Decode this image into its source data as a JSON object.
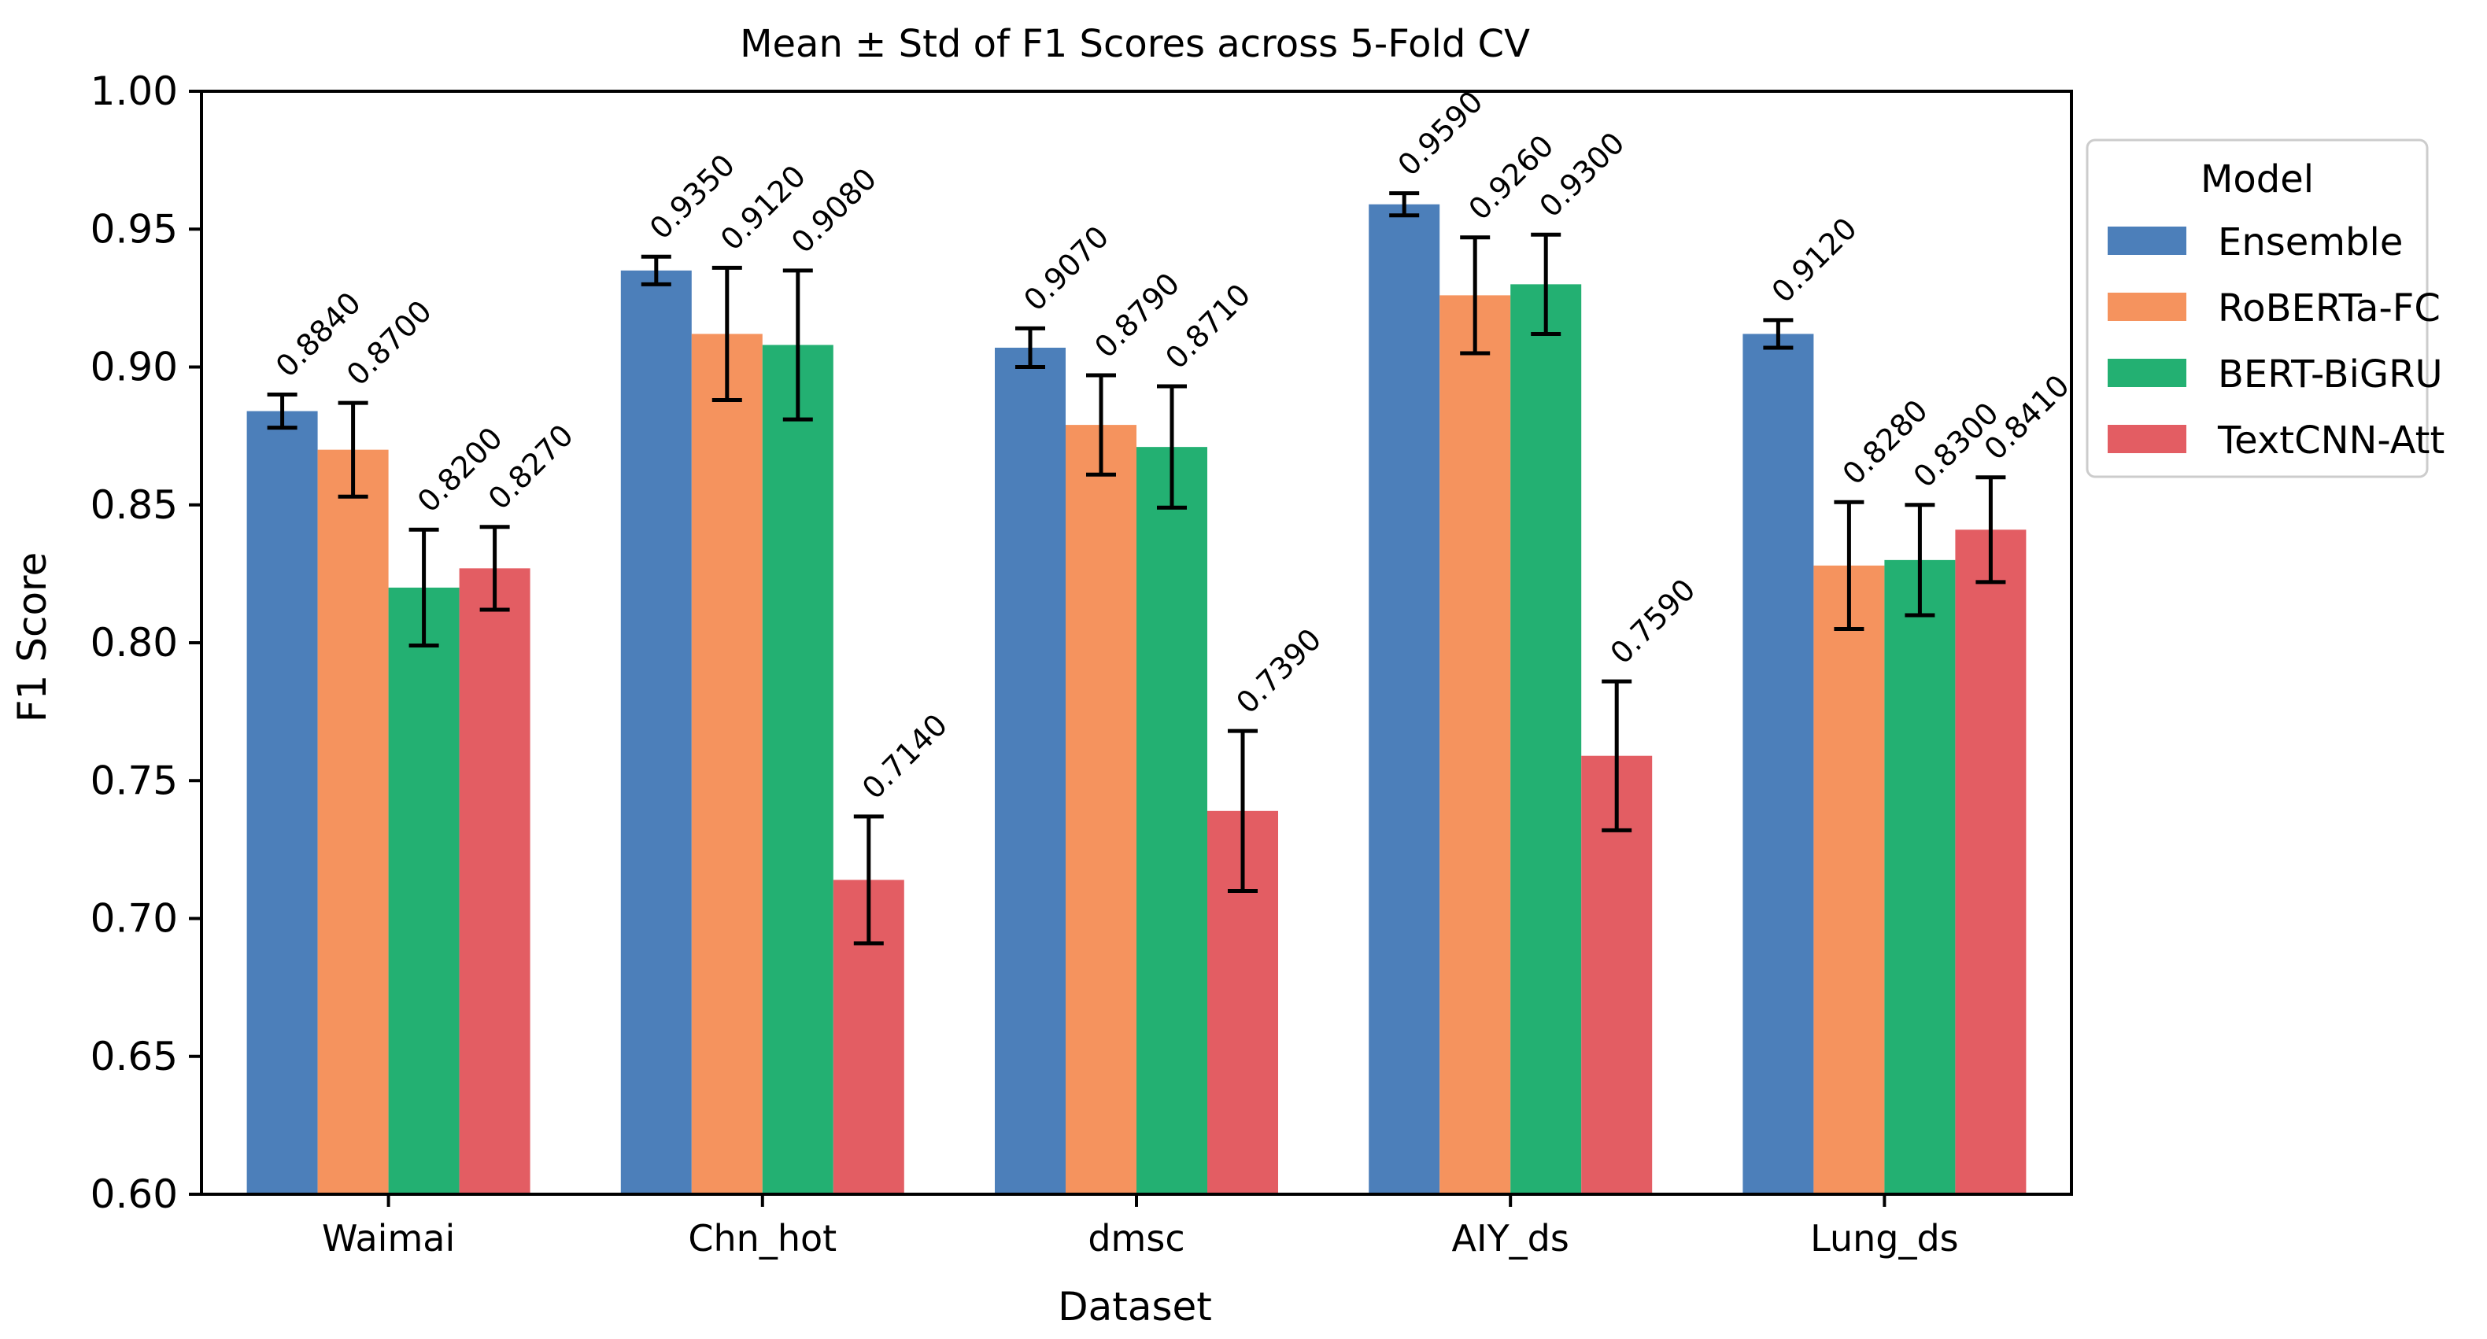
{
  "chart_data": {
    "type": "bar",
    "title": "Mean ± Std of F1 Scores across 5-Fold CV",
    "xlabel": "Dataset",
    "ylabel": "F1 Score",
    "ylim": [
      0.6,
      1.0
    ],
    "yticks": [
      0.6,
      0.65,
      0.7,
      0.75,
      0.8,
      0.85,
      0.9,
      0.95,
      1.0
    ],
    "ytick_labels": [
      "0.60",
      "0.65",
      "0.70",
      "0.75",
      "0.80",
      "0.85",
      "0.90",
      "0.95",
      "1.00"
    ],
    "categories": [
      "Waimai",
      "Chn_hot",
      "dmsc",
      "AIY_ds",
      "Lung_ds"
    ],
    "grid": false,
    "legend": {
      "title": "Model",
      "placement": "outside-right"
    },
    "series": [
      {
        "name": "Ensemble",
        "color": "#4c7fba",
        "values": [
          0.884,
          0.935,
          0.907,
          0.959,
          0.912
        ],
        "errors": [
          0.006,
          0.005,
          0.007,
          0.004,
          0.005
        ],
        "labels": [
          "0.8840",
          "0.9350",
          "0.9070",
          "0.9590",
          "0.9120"
        ]
      },
      {
        "name": "RoBERTa-FC",
        "color": "#f5935e",
        "values": [
          0.87,
          0.912,
          0.879,
          0.926,
          0.828
        ],
        "errors": [
          0.017,
          0.024,
          0.018,
          0.021,
          0.023
        ],
        "labels": [
          "0.8700",
          "0.9120",
          "0.8790",
          "0.9260",
          "0.8280"
        ]
      },
      {
        "name": "BERT-BiGRU",
        "color": "#23b072",
        "values": [
          0.82,
          0.908,
          0.871,
          0.93,
          0.83
        ],
        "errors": [
          0.021,
          0.027,
          0.022,
          0.018,
          0.02
        ],
        "labels": [
          "0.8200",
          "0.9080",
          "0.8710",
          "0.9300",
          "0.8300"
        ]
      },
      {
        "name": "TextCNN-Att",
        "color": "#e35d63",
        "values": [
          0.827,
          0.714,
          0.739,
          0.759,
          0.841
        ],
        "errors": [
          0.015,
          0.023,
          0.029,
          0.027,
          0.019
        ],
        "labels": [
          "0.8270",
          "0.7140",
          "0.7390",
          "0.7590",
          "0.8410"
        ]
      }
    ]
  }
}
